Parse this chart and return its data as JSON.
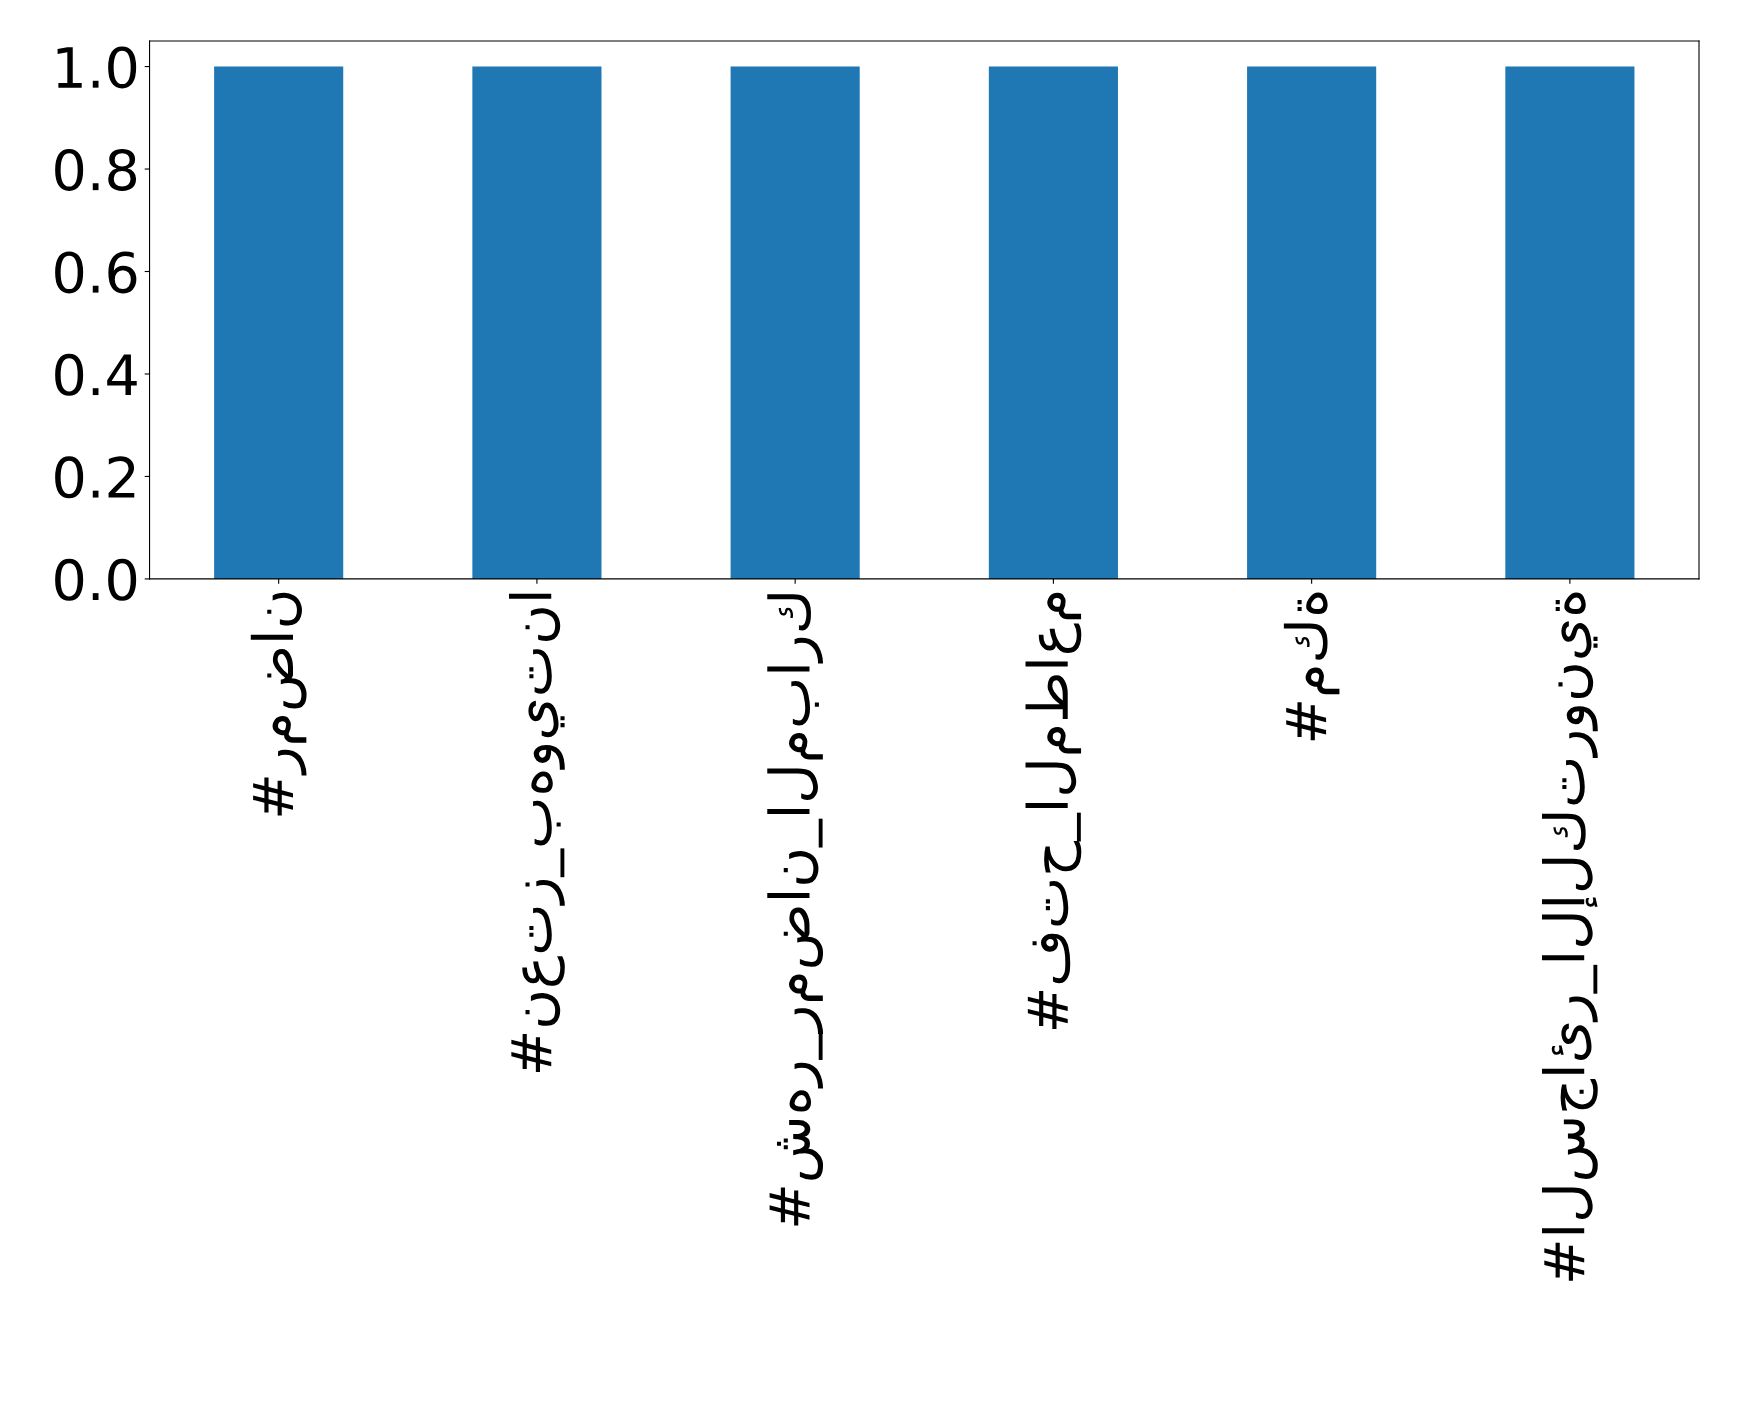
{
  "chart_data": {
    "type": "bar",
    "categories": [
      "#رمضان",
      "#نعتز_بهويتنا",
      "#شهر_رمضان_المبارك",
      "#فتح_المطاعم",
      "#مكة",
      "#السجائر_الإلكترونية"
    ],
    "values": [
      1,
      1,
      1,
      1,
      1,
      1
    ],
    "color": "#1f77b4",
    "ylim": [
      0,
      1.05
    ],
    "yticks": [
      {
        "value": 0,
        "label": "0.0"
      },
      {
        "value": 0.2,
        "label": "0.2"
      },
      {
        "value": 0.4,
        "label": "0.4"
      },
      {
        "value": 0.6,
        "label": "0.6"
      },
      {
        "value": 0.8,
        "label": "0.8"
      },
      {
        "value": 1,
        "label": "1.0"
      }
    ],
    "grid": false,
    "legend": false
  }
}
